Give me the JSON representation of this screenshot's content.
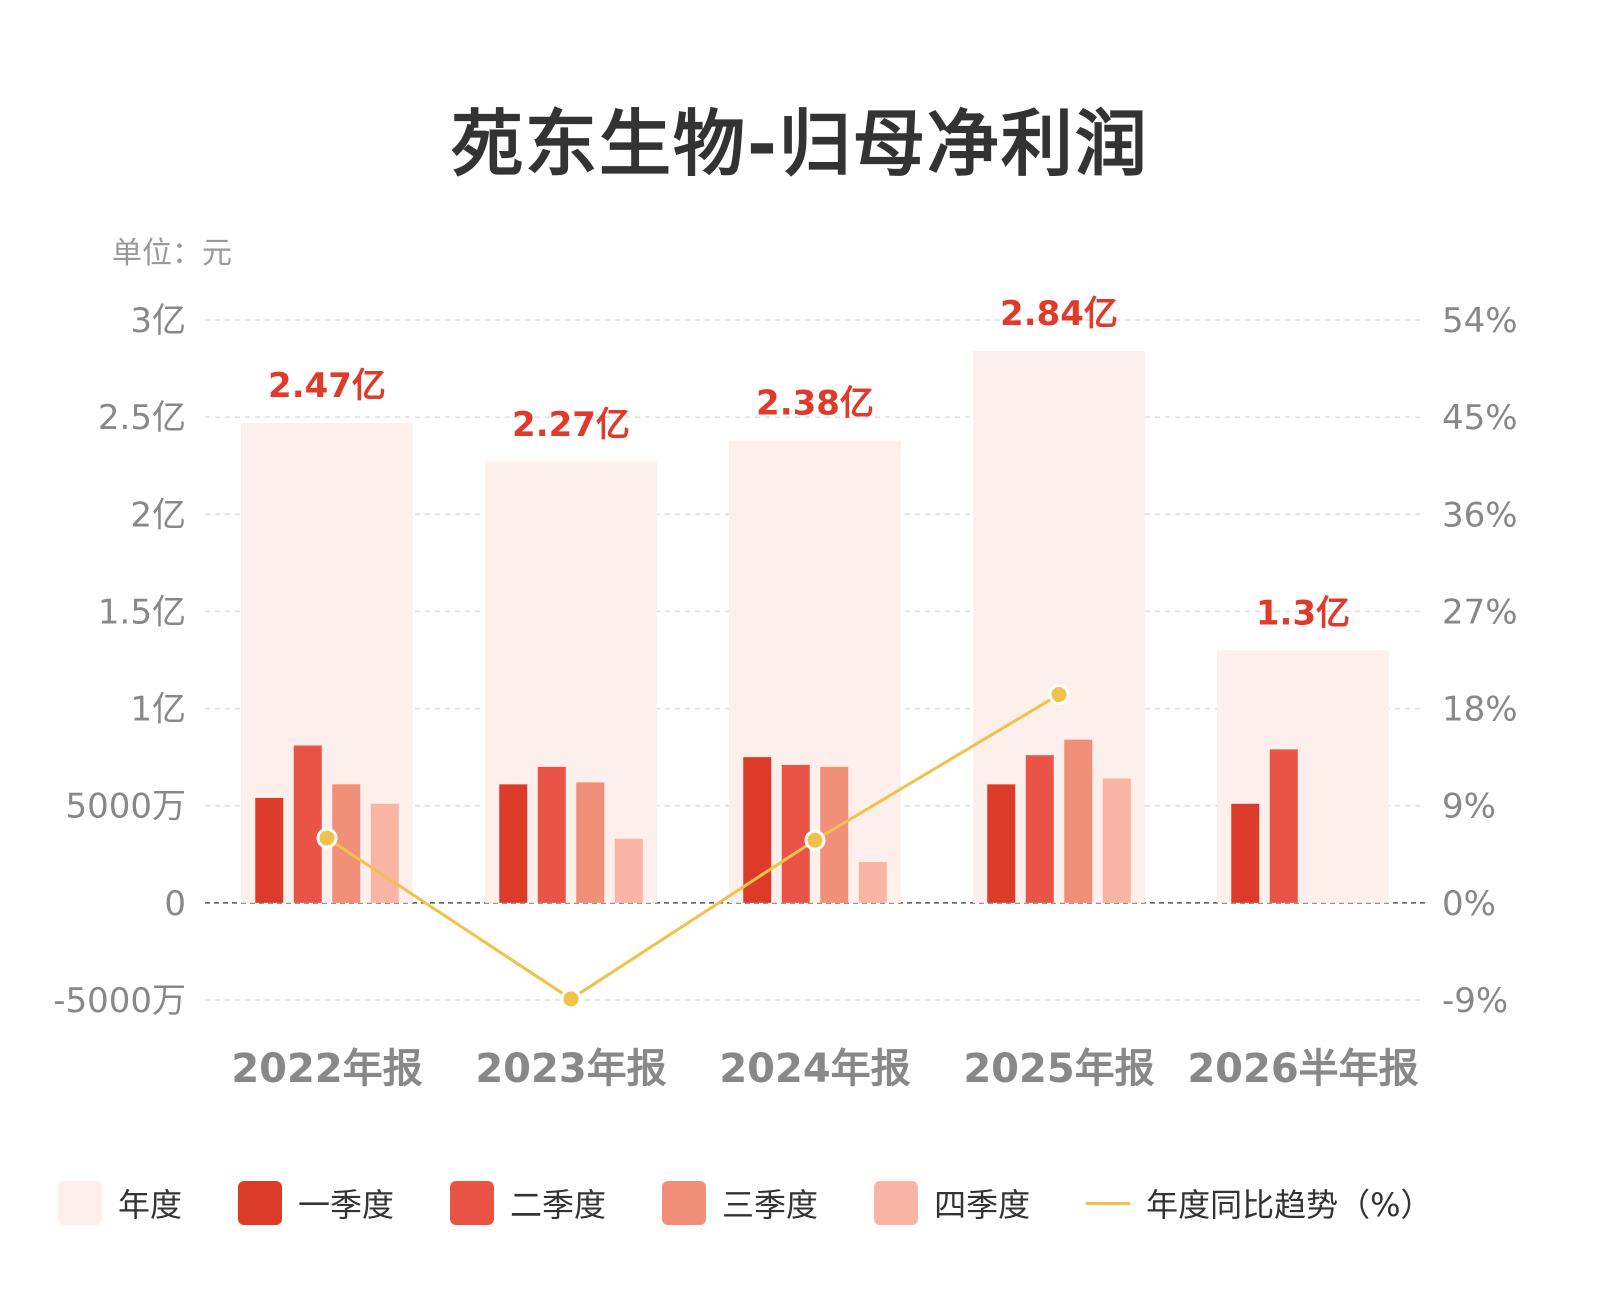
{
  "title": "苑东生物-归母净利润",
  "unit_label": "单位：元",
  "colors": {
    "annual": "#fdf0ec",
    "q1": "#dd3b2a",
    "q2": "#ea5447",
    "q3": "#f28f79",
    "q4": "#f9b4a4",
    "line": "#f0c24b",
    "value_label": "#e03a2a",
    "axis_text": "#888888",
    "grid": "#dddddd",
    "zero_line": "#555555"
  },
  "legend": [
    {
      "key": "annual",
      "label": "年度",
      "kind": "box"
    },
    {
      "key": "q1",
      "label": "一季度",
      "kind": "box"
    },
    {
      "key": "q2",
      "label": "二季度",
      "kind": "box"
    },
    {
      "key": "q3",
      "label": "三季度",
      "kind": "box"
    },
    {
      "key": "q4",
      "label": "四季度",
      "kind": "box"
    },
    {
      "key": "line",
      "label": "年度同比趋势（%）",
      "kind": "line"
    }
  ],
  "chart_data": {
    "type": "bar",
    "categories": [
      "2022年报",
      "2023年报",
      "2024年报",
      "2025年报",
      "2026半年报"
    ],
    "annual": [
      247000000.0,
      227000000.0,
      238000000.0,
      284000000.0,
      130000000.0
    ],
    "annual_labels": [
      "2.47亿",
      "2.27亿",
      "2.38亿",
      "2.84亿",
      "1.3亿"
    ],
    "series": [
      {
        "name": "一季度",
        "key": "q1",
        "values": [
          54000000.0,
          61000000.0,
          75000000.0,
          61000000.0,
          51000000.0
        ]
      },
      {
        "name": "二季度",
        "key": "q2",
        "values": [
          81000000.0,
          70000000.0,
          71000000.0,
          76000000.0,
          79000000.0
        ]
      },
      {
        "name": "三季度",
        "key": "q3",
        "values": [
          61000000.0,
          62000000.0,
          70000000.0,
          84000000.0,
          null
        ]
      },
      {
        "name": "四季度",
        "key": "q4",
        "values": [
          51000000.0,
          33000000.0,
          21000000.0,
          64000000.0,
          null
        ]
      }
    ],
    "yoy_trend": {
      "name": "年度同比趋势（%）",
      "values": [
        6.0,
        -8.9,
        5.8,
        19.3,
        null
      ]
    },
    "y_left": {
      "ticks": [
        -50000000.0,
        0,
        50000000.0,
        100000000.0,
        150000000.0,
        200000000.0,
        250000000.0,
        300000000.0
      ],
      "tick_labels": [
        "-5000万",
        "0",
        "5000万",
        "1亿",
        "1.5亿",
        "2亿",
        "2.5亿",
        "3亿"
      ],
      "range": [
        -50000000.0,
        300000000.0
      ]
    },
    "y_right": {
      "ticks": [
        -9,
        0,
        9,
        18,
        27,
        36,
        45,
        54
      ],
      "tick_labels": [
        "-9%",
        "0%",
        "9%",
        "18%",
        "27%",
        "36%",
        "45%",
        "54%"
      ],
      "range": [
        -9,
        54
      ]
    },
    "grid": true,
    "legend_position": "bottom"
  }
}
